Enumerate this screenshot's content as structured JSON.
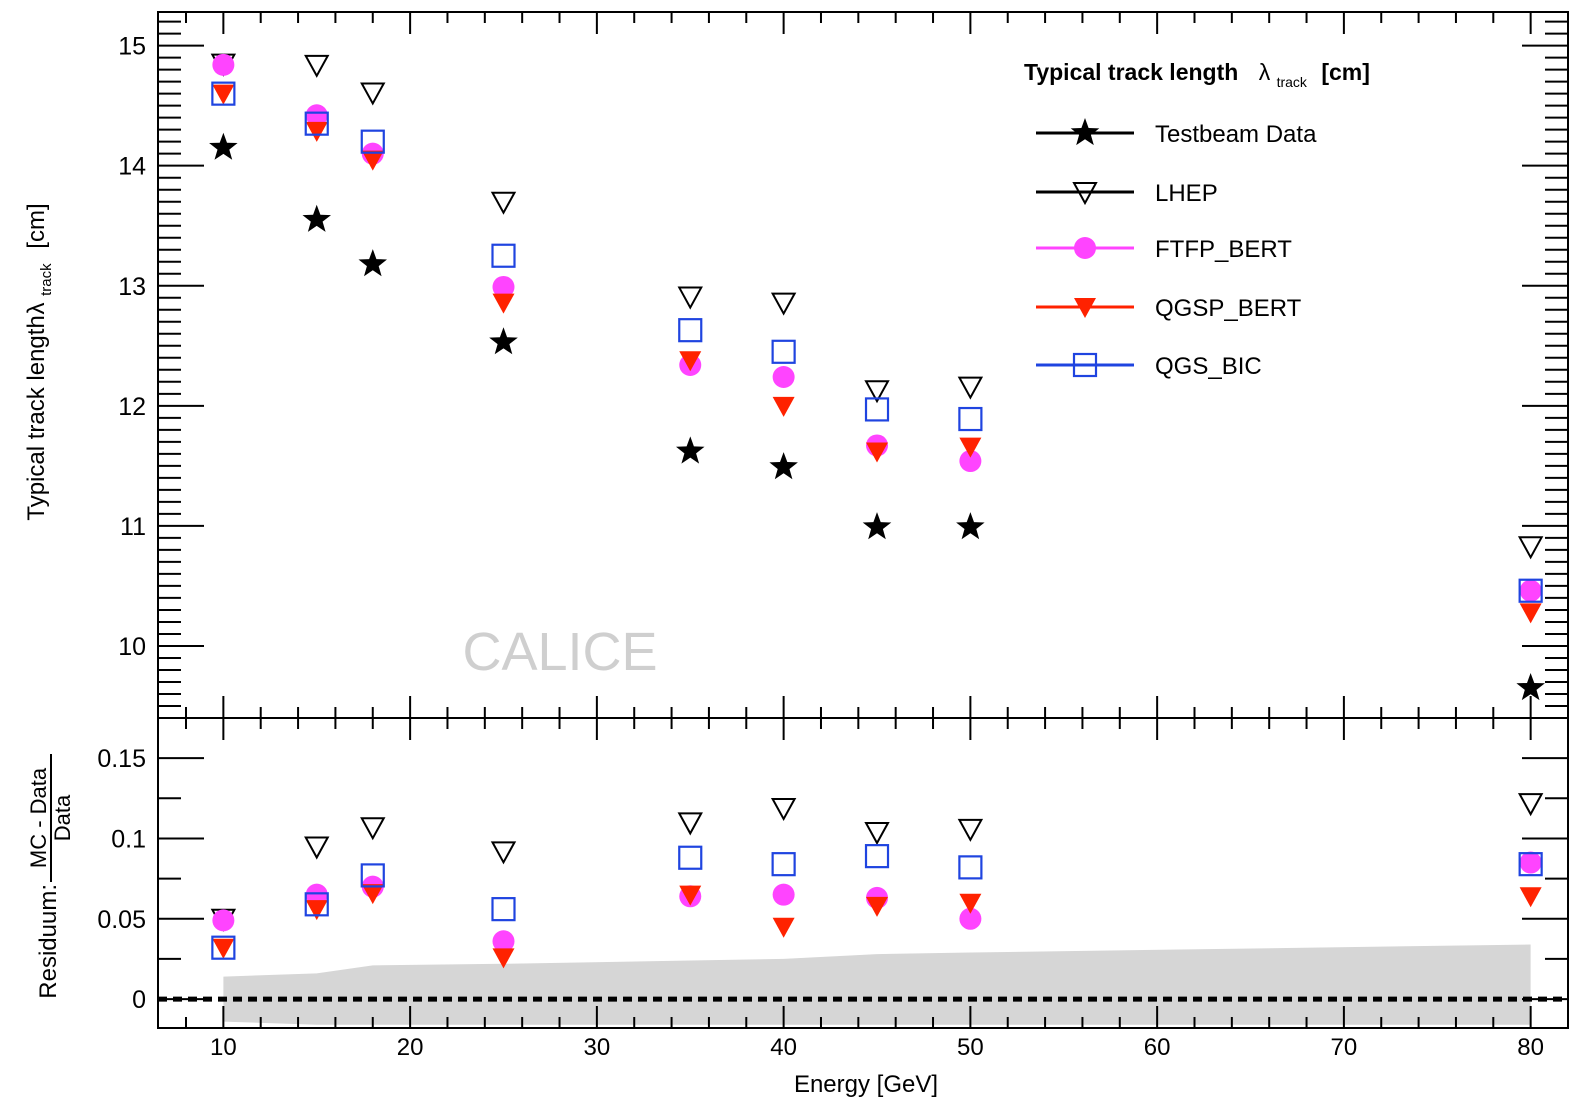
{
  "chart_data": {
    "type": "scatter",
    "watermark": "CALICE",
    "xlabel": "Energy [GeV]",
    "x": [
      10,
      15,
      18,
      25,
      35,
      40,
      45,
      50,
      80
    ],
    "xlim": [
      6.5,
      82
    ],
    "x_ticks": [
      10,
      20,
      30,
      40,
      50,
      60,
      70,
      80
    ],
    "legend": {
      "title_text": "Typical track length",
      "title_symbol": "λ",
      "title_subscript": "track",
      "title_unit": "[cm]",
      "placement": "top-right"
    },
    "top_panel": {
      "ylabel_text": "Typical track length",
      "ylabel_symbol": "λ",
      "ylabel_subscript": "track",
      "ylabel_unit": "[cm]",
      "ylim": [
        9.4,
        15.28
      ],
      "y_ticks": [
        10,
        11,
        12,
        13,
        14,
        15
      ],
      "series": [
        {
          "name": "Testbeam Data",
          "marker": "star",
          "color": "#000000",
          "values": [
            14.15,
            13.55,
            13.18,
            12.53,
            11.62,
            11.49,
            10.99,
            10.99,
            9.65
          ]
        },
        {
          "name": "LHEP",
          "marker": "triangle-down-open",
          "color": "#000000",
          "values": [
            14.85,
            14.84,
            14.61,
            13.7,
            12.91,
            12.86,
            12.13,
            12.16,
            10.83
          ]
        },
        {
          "name": "FTFP_BERT",
          "marker": "circle",
          "color": "#ff44ff",
          "values": [
            14.84,
            14.42,
            14.1,
            12.99,
            12.34,
            12.24,
            11.67,
            11.54,
            10.46
          ]
        },
        {
          "name": "QGSP_BERT",
          "marker": "triangle-down",
          "color": "#ff2200",
          "values": [
            14.6,
            14.29,
            14.05,
            12.86,
            12.38,
            12.0,
            11.62,
            11.66,
            10.28
          ]
        },
        {
          "name": "QGS_BIC",
          "marker": "square-open",
          "color": "#1f44e0",
          "values": [
            14.6,
            14.35,
            14.2,
            13.25,
            12.63,
            12.45,
            11.97,
            11.89,
            10.46
          ]
        }
      ]
    },
    "bottom_panel": {
      "ylabel_prefix": "Residuum:",
      "ylabel_numerator": "MC - Data",
      "ylabel_denominator": "Data",
      "ylim": [
        -0.018,
        0.175
      ],
      "y_ticks": [
        0,
        0.05,
        0.1,
        0.15
      ],
      "y_tick_labels": [
        "0",
        "0.05",
        "0.1",
        "0.15"
      ],
      "reference_line": 0,
      "band_x": [
        10,
        15,
        18,
        25,
        35,
        40,
        45,
        50,
        80
      ],
      "band_upper": [
        0.014,
        0.016,
        0.021,
        0.022,
        0.024,
        0.025,
        0.028,
        0.029,
        0.034
      ],
      "band_lower": [
        -0.014,
        -0.016,
        -0.016,
        -0.016,
        -0.016,
        -0.016,
        -0.016,
        -0.016,
        -0.016
      ],
      "band_color": "#d6d6d6",
      "series": [
        {
          "name": "LHEP",
          "marker": "triangle-down-open",
          "color": "#000000",
          "values": [
            0.05,
            0.095,
            0.107,
            0.092,
            0.11,
            0.119,
            0.104,
            0.106,
            0.122
          ]
        },
        {
          "name": "FTFP_BERT",
          "marker": "circle",
          "color": "#ff44ff",
          "values": [
            0.049,
            0.065,
            0.07,
            0.036,
            0.064,
            0.065,
            0.063,
            0.05,
            0.085
          ]
        },
        {
          "name": "QGSP_BERT",
          "marker": "triangle-down",
          "color": "#ff2200",
          "values": [
            0.032,
            0.056,
            0.066,
            0.026,
            0.065,
            0.045,
            0.058,
            0.06,
            0.064
          ]
        },
        {
          "name": "QGS_BIC",
          "marker": "square-open",
          "color": "#1f44e0",
          "values": [
            0.032,
            0.059,
            0.077,
            0.056,
            0.088,
            0.084,
            0.089,
            0.082,
            0.084
          ]
        }
      ]
    }
  }
}
